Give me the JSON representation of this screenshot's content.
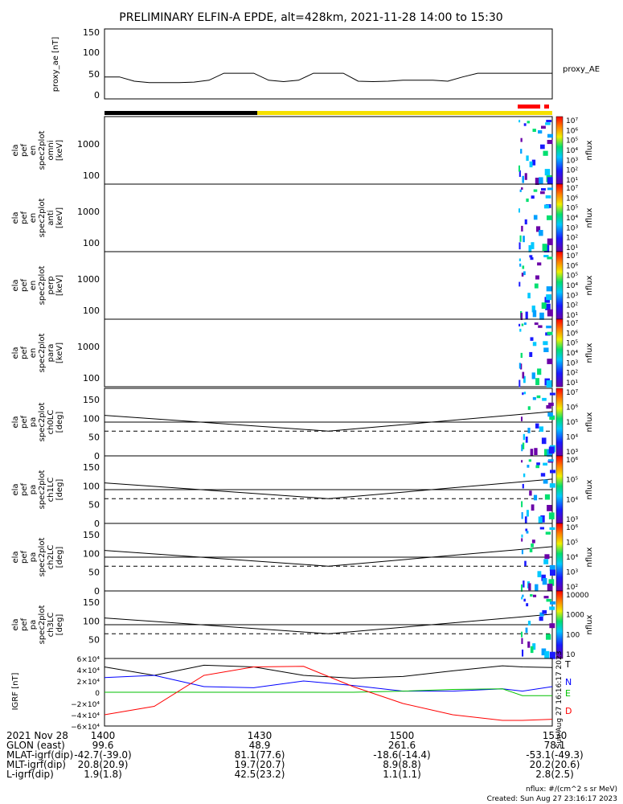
{
  "title": "PRELIMINARY ELFIN-A EPDE, alt=428km, 2021-11-28 14:00 to 15:30",
  "colors": {
    "sci_bar_black": "#000000",
    "sci_bar_yellow": "#f5e000",
    "sci_flag_red": "#ff0000",
    "grf_T": "#000000",
    "grf_N": "#0000ff",
    "grf_E": "#00c000",
    "grf_D": "#ff0000"
  },
  "proxy_ae_panel": {
    "ylabel": "proxy_ae\n[nT]",
    "legend": "proxy_AE",
    "yticks": [
      "150",
      "100",
      "50",
      "0"
    ],
    "ylim": [
      0,
      150
    ]
  },
  "spectra_panels": [
    {
      "ylabel": "ela\npef\nen\nspec2plot\nomni\n[keV]",
      "yticks": [
        "1000",
        "100"
      ],
      "cbar_label": "nflux",
      "cbar_ticks": [
        "10⁷",
        "10⁶",
        "10⁵",
        "10⁴",
        "10³",
        "10²",
        "10¹"
      ]
    },
    {
      "ylabel": "ela\npef\nen\nspec2plot\nanti\n[keV]",
      "yticks": [
        "1000",
        "100"
      ],
      "cbar_label": "nflux",
      "cbar_ticks": [
        "10⁷",
        "10⁶",
        "10⁵",
        "10⁴",
        "10³",
        "10²",
        "10¹"
      ]
    },
    {
      "ylabel": "ela\npef\nen\nspec2plot\nperp\n[keV]",
      "yticks": [
        "1000",
        "100"
      ],
      "cbar_label": "nflux",
      "cbar_ticks": [
        "10⁷",
        "10⁶",
        "10⁵",
        "10⁴",
        "10³",
        "10²",
        "10¹"
      ]
    },
    {
      "ylabel": "ela\npef\nen\nspec2plot\npara\n[keV]",
      "yticks": [
        "1000",
        "100"
      ],
      "cbar_label": "nflux",
      "cbar_ticks": [
        "10⁷",
        "10⁶",
        "10⁵",
        "10⁴",
        "10³",
        "10²",
        "10¹"
      ]
    }
  ],
  "pa_panels": [
    {
      "ylabel": "ela\npef\npa\nspec2plot\nch0LC\n[deg]",
      "yticks": [
        "150",
        "100",
        "50",
        "0"
      ],
      "cbar_label": "nflux",
      "cbar_ticks": [
        "10⁷",
        "10⁶",
        "10⁵",
        "10⁴",
        "10³"
      ]
    },
    {
      "ylabel": "ela\npef\npa\nspec2plot\nch1LC\n[deg]",
      "yticks": [
        "150",
        "100",
        "50",
        "0"
      ],
      "cbar_label": "nflux",
      "cbar_ticks": [
        "10⁶",
        "10⁵",
        "10⁴",
        "10³"
      ]
    },
    {
      "ylabel": "ela\npef\npa\nspec2plot\nch2LC\n[deg]",
      "yticks": [
        "150",
        "100",
        "50",
        "0"
      ],
      "cbar_label": "nflux",
      "cbar_ticks": [
        "10⁶",
        "10⁵",
        "10⁴",
        "10³",
        "10²"
      ]
    },
    {
      "ylabel": "ela\npef\npa\nspec2plot\nch3LC\n[deg]",
      "yticks": [
        "150",
        "100",
        "50"
      ],
      "cbar_label": "nflux",
      "cbar_ticks": [
        "10000",
        "1000",
        "100",
        "10"
      ]
    }
  ],
  "grf_panel": {
    "ylabel": "IGRF\n[nT]",
    "yticks": [
      "6×10⁴",
      "4×10⁴",
      "2×10⁴",
      "0",
      "−2×10⁴",
      "−4×10⁴",
      "−6×10⁴"
    ],
    "legend": [
      "T",
      "N",
      "E",
      "D"
    ],
    "side_note": "Sun Aug 27 16:16:17 2023"
  },
  "footer": {
    "rows": [
      {
        "label": "2021 Nov 28",
        "values": [
          "1400",
          "1430",
          "1500",
          "1530"
        ]
      },
      {
        "label": "GLON (east)",
        "values": [
          "99.6",
          "48.9",
          "261.6",
          "78.1"
        ]
      },
      {
        "label": "MLAT-igrf(dip)",
        "values": [
          "-42.7(-39.0)",
          "81.1(77.6)",
          "-18.6(-14.4)",
          "-53.1(-49.3)"
        ]
      },
      {
        "label": "MLT-igrf(dip)",
        "values": [
          "20.8(20.9)",
          "19.7(20.7)",
          "8.9(8.8)",
          "20.2(20.6)"
        ]
      },
      {
        "label": "L-igrf(dip)",
        "values": [
          "1.9(1.8)",
          "42.5(23.2)",
          "1.1(1.1)",
          "2.8(2.5)"
        ]
      }
    ],
    "note1": "nflux: #/(cm^2 s sr MeV)",
    "note2": "Created: Sun Aug 27 23:16:17 2023"
  },
  "chart_data": [
    {
      "type": "line",
      "name": "proxy_AE",
      "x_minutes": [
        0,
        3,
        6,
        9,
        12,
        15,
        18,
        21,
        24,
        27,
        30,
        33,
        36,
        39,
        42,
        45,
        48,
        51,
        54,
        57,
        60,
        63,
        66,
        69,
        72,
        75,
        78,
        81,
        84,
        87,
        90
      ],
      "values": [
        47,
        47,
        38,
        35,
        35,
        35,
        36,
        40,
        55,
        55,
        55,
        40,
        37,
        40,
        55,
        55,
        55,
        38,
        37,
        38,
        40,
        40,
        40,
        38,
        47,
        55,
        55,
        55,
        55,
        55,
        55
      ],
      "ylim": [
        0,
        150
      ]
    },
    {
      "type": "line",
      "name": "IGRF",
      "x_minutes": [
        0,
        10,
        20,
        30,
        40,
        50,
        60,
        70,
        80,
        84,
        90
      ],
      "series": [
        {
          "name": "T",
          "values": [
            45000,
            30000,
            48000,
            45000,
            30000,
            25000,
            28000,
            38000,
            47000,
            45000,
            44000
          ]
        },
        {
          "name": "N",
          "values": [
            26000,
            30000,
            10000,
            8000,
            20000,
            12000,
            2000,
            2000,
            6000,
            2000,
            10000
          ]
        },
        {
          "name": "E",
          "values": [
            0,
            0,
            0,
            0,
            0,
            0,
            2000,
            5000,
            6000,
            -6000,
            -6000
          ]
        },
        {
          "name": "D",
          "values": [
            -40000,
            -25000,
            30000,
            45000,
            46000,
            10000,
            -20000,
            -40000,
            -50000,
            -50000,
            -48000
          ]
        }
      ],
      "ylim": [
        -60000,
        60000
      ]
    }
  ]
}
